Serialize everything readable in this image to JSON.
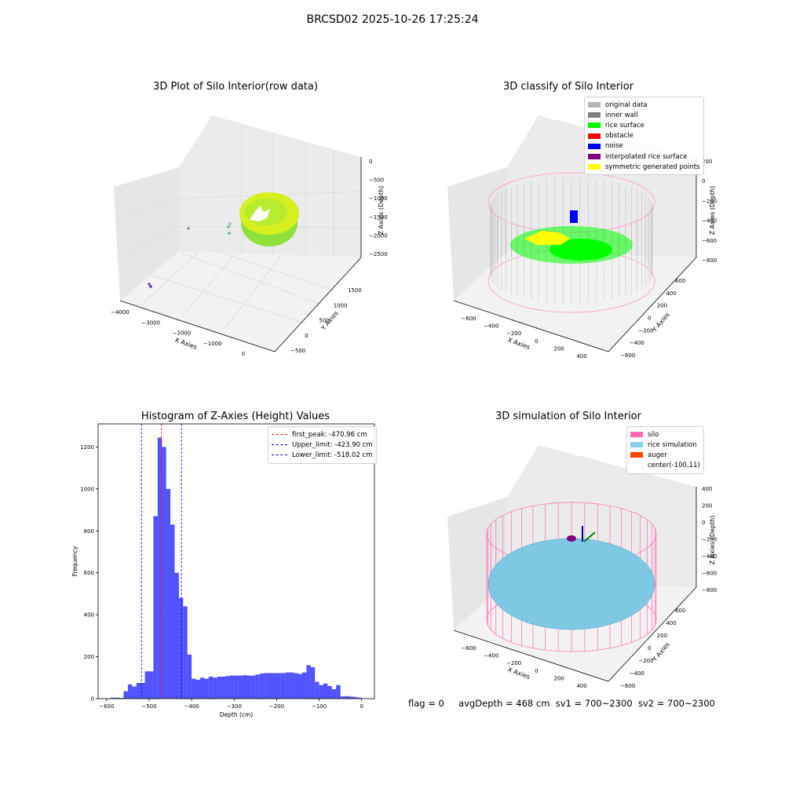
{
  "suptitle": "BRCSD02 2025-10-26 17:25:24",
  "panels": {
    "raw": {
      "title": "3D Plot of Silo Interior(row data)",
      "xlabel": "X Axies",
      "ylabel": "Y Axies",
      "zlabel": "Z Axies (Depth)",
      "xticks": [
        "−4000",
        "−3000",
        "−2000",
        "−1000",
        "0"
      ],
      "yticks": [
        "−500",
        "0",
        "500",
        "1000",
        "1500"
      ],
      "zticks": [
        "0",
        "−500",
        "−1000",
        "−1500",
        "−2000",
        "−2500"
      ]
    },
    "classify": {
      "title": "3D classify of Silo Interior",
      "xlabel": "X Axies",
      "ylabel": "Y Axies",
      "zlabel": "Z Axies (Depth)",
      "xticks": [
        "−600",
        "−400",
        "−200",
        "0",
        "200",
        "400"
      ],
      "yticks": [
        "−600",
        "−400",
        "−200",
        "0",
        "200",
        "400",
        "600"
      ],
      "zticks": [
        "200",
        "0",
        "−200",
        "−400",
        "−600",
        "−800"
      ],
      "legend": [
        {
          "label": "original data",
          "color": "#b5b5b5"
        },
        {
          "label": "inner wall",
          "color": "#808080"
        },
        {
          "label": "rice surface",
          "color": "#00ff00"
        },
        {
          "label": "obstacle",
          "color": "#ff0000"
        },
        {
          "label": "noise",
          "color": "#0000ff"
        },
        {
          "label": "interpolated rice surface",
          "color": "#800080"
        },
        {
          "label": "symmetric generated points",
          "color": "#ffff00"
        }
      ]
    },
    "simulation": {
      "title": "3D simulation of Silo Interior",
      "xlabel": "X Axies",
      "ylabel": "Y Axies",
      "zlabel": "Z Axies (Depth)",
      "xticks": [
        "−600",
        "−400",
        "−200",
        "0",
        "200",
        "400"
      ],
      "yticks": [
        "−600",
        "−400",
        "−200",
        "0",
        "200",
        "400",
        "600"
      ],
      "zticks": [
        "400",
        "200",
        "0",
        "−200",
        "−400",
        "−600",
        "−800"
      ],
      "legend": [
        {
          "label": "silo",
          "color": "#ff69b4"
        },
        {
          "label": "rice simulation",
          "color": "#87ceeb"
        },
        {
          "label": "auger",
          "color": "#ff4500"
        },
        {
          "label": "center(-100,11)",
          "color": "#ffffff"
        }
      ]
    }
  },
  "footer": {
    "flag": "flag = 0",
    "avg": "avgDepth = 468 cm",
    "sv1": "sv1 = 700~2300",
    "sv2": "sv2 = 700~2300"
  },
  "chart_data": {
    "type": "bar",
    "title": "Histogram of Z-Axies (Height) Values",
    "xlabel": "Depth (cm)",
    "ylabel": "Frequency",
    "xlim": [
      -620,
      30
    ],
    "ylim": [
      0,
      1310
    ],
    "xticks": [
      -600,
      -500,
      -400,
      -300,
      -200,
      -100,
      0
    ],
    "xtick_labels": [
      "−600",
      "−500",
      "−400",
      "−300",
      "−200",
      "−100",
      "0"
    ],
    "yticks": [
      0,
      200,
      400,
      600,
      800,
      1000,
      1200
    ],
    "bar_color": "#0000ff",
    "bin_width": 10,
    "bin_starts": [
      -590,
      -580,
      -570,
      -560,
      -550,
      -540,
      -530,
      -520,
      -510,
      -500,
      -490,
      -480,
      -470,
      -460,
      -450,
      -440,
      -430,
      -420,
      -410,
      -400,
      -390,
      -380,
      -370,
      -360,
      -350,
      -340,
      -330,
      -320,
      -310,
      -300,
      -290,
      -280,
      -270,
      -260,
      -250,
      -240,
      -230,
      -220,
      -210,
      -200,
      -190,
      -180,
      -170,
      -160,
      -150,
      -140,
      -130,
      -120,
      -110,
      -100,
      -90,
      -80,
      -70,
      -60,
      -50,
      -40,
      -30,
      -20,
      -10
    ],
    "values": [
      5,
      5,
      3,
      35,
      68,
      58,
      75,
      75,
      130,
      130,
      870,
      1245,
      1200,
      1000,
      830,
      600,
      480,
      440,
      210,
      95,
      90,
      100,
      95,
      105,
      100,
      105,
      105,
      108,
      110,
      110,
      110,
      112,
      110,
      110,
      115,
      120,
      122,
      122,
      122,
      122,
      122,
      125,
      125,
      122,
      118,
      125,
      160,
      150,
      80,
      65,
      72,
      60,
      45,
      65,
      10,
      12,
      10,
      8,
      5
    ],
    "lines": [
      {
        "label": "first_peak: -470.96 cm",
        "x": -470.96,
        "color": "#ff0000"
      },
      {
        "label": "Upper_limit: -423.90 cm",
        "x": -423.9,
        "color": "#0000ff"
      },
      {
        "label": "Lower_limit: -518.02 cm",
        "x": -518.02,
        "color": "#0000ff"
      }
    ]
  }
}
